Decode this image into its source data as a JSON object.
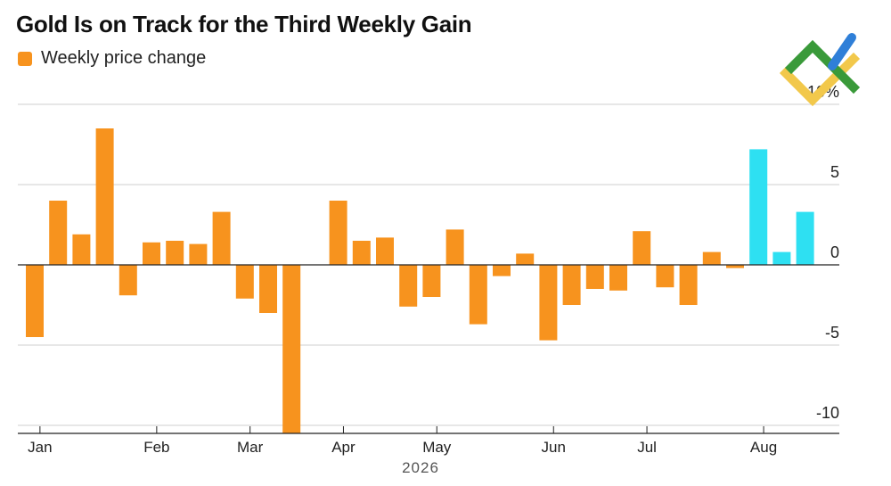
{
  "title": "Gold Is on Track for the Third Weekly Gain",
  "legend": {
    "label": "Weekly price change",
    "color": "#F7931E"
  },
  "colors": {
    "history": "#F7931E",
    "highlight": "#2EE0F2",
    "grid": "#cfcfcf",
    "axis": "#222222",
    "tick_text": "#222222"
  },
  "logo": {
    "icon": "brand-logo-icon",
    "colors": [
      "#3A9A3A",
      "#F2C84B",
      "#2F7FD8"
    ]
  },
  "chart_data": {
    "type": "bar",
    "title": "Gold Is on Track for the Third Weekly Gain",
    "xlabel": "2026",
    "ylabel": "",
    "y_unit": "%",
    "ylim": [
      -10.5,
      10
    ],
    "y_ticks": [
      {
        "value": 10,
        "label": "10%"
      },
      {
        "value": 5,
        "label": "5"
      },
      {
        "value": 0,
        "label": "0"
      },
      {
        "value": -5,
        "label": "-5"
      },
      {
        "value": -10,
        "label": "-10"
      }
    ],
    "grid": true,
    "legend_position": "top-left",
    "month_ticks": [
      {
        "label": "Jan",
        "week": 0.3
      },
      {
        "label": "Feb",
        "week": 5.3
      },
      {
        "label": "Mar",
        "week": 9.3
      },
      {
        "label": "Apr",
        "week": 13.3
      },
      {
        "label": "May",
        "week": 17.3
      },
      {
        "label": "Jun",
        "week": 22.3
      },
      {
        "label": "Jul",
        "week": 26.3
      },
      {
        "label": "Aug",
        "week": 31.3
      }
    ],
    "series": [
      {
        "name": "Weekly price change",
        "values": [
          -4.5,
          4.0,
          1.9,
          8.5,
          -1.9,
          1.4,
          1.5,
          1.3,
          3.3,
          -2.1,
          -3.0,
          -10.5,
          0.0,
          4.0,
          1.5,
          1.7,
          -2.6,
          -2.0,
          2.2,
          -3.7,
          -0.7,
          0.7,
          -4.7,
          -2.5,
          -1.5,
          -1.6,
          2.1,
          -1.4,
          -2.5,
          0.8,
          -0.2,
          7.2,
          0.8,
          3.3
        ]
      }
    ],
    "highlight_from_index": 31
  }
}
